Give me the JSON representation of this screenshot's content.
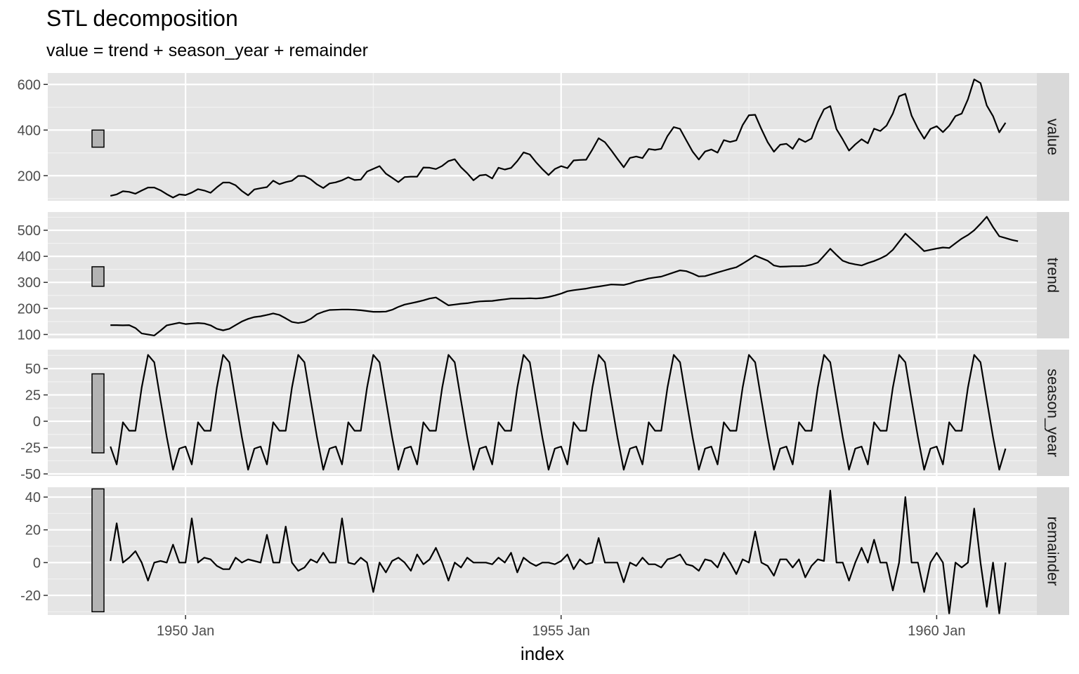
{
  "title": "STL decomposition",
  "subtitle": "value = trend + season_year + remainder",
  "colors": {
    "panel_bg": "#e5e5e5",
    "grid_major": "#ffffff",
    "strip_bg": "#d9d9d9",
    "line": "#000000",
    "scale_bar_fill": "#b3b3b3"
  },
  "chart_data": {
    "type": "line",
    "x_start": "1949 Jan",
    "x_end": "1960 Dec",
    "frequency": "monthly",
    "xlabel": "index",
    "x_ticks": [
      {
        "label": "1950 Jan",
        "year": 1950
      },
      {
        "label": "1955 Jan",
        "year": 1955
      },
      {
        "label": "1960 Jan",
        "year": 1960
      }
    ],
    "grid": true,
    "facets": [
      {
        "name": "value",
        "ylim": [
          90,
          650
        ],
        "y_ticks": [
          200,
          400,
          600
        ],
        "scale_bar": [
          325,
          400
        ],
        "values": [
          112,
          118,
          132,
          129,
          121,
          135,
          148,
          148,
          136,
          119,
          104,
          118,
          115,
          126,
          141,
          135,
          125,
          149,
          170,
          170,
          158,
          133,
          114,
          140,
          145,
          150,
          178,
          163,
          172,
          178,
          199,
          199,
          184,
          162,
          146,
          166,
          171,
          180,
          193,
          181,
          183,
          218,
          230,
          242,
          209,
          191,
          172,
          194,
          196,
          196,
          236,
          235,
          229,
          243,
          264,
          272,
          237,
          211,
          180,
          201,
          204,
          188,
          235,
          227,
          234,
          264,
          302,
          293,
          259,
          229,
          203,
          229,
          242,
          233,
          267,
          269,
          270,
          315,
          364,
          347,
          312,
          274,
          237,
          278,
          284,
          277,
          317,
          313,
          318,
          374,
          413,
          405,
          355,
          306,
          271,
          306,
          315,
          301,
          356,
          348,
          355,
          422,
          465,
          467,
          404,
          347,
          305,
          336,
          340,
          318,
          362,
          348,
          363,
          435,
          491,
          505,
          404,
          359,
          310,
          337,
          360,
          342,
          406,
          396,
          420,
          472,
          548,
          559,
          463,
          407,
          362,
          405,
          417,
          391,
          419,
          461,
          472,
          535,
          622,
          606,
          508,
          461,
          390,
          432
        ]
      },
      {
        "name": "trend",
        "ylim": [
          85,
          570
        ],
        "y_ticks": [
          100,
          200,
          300,
          400,
          500
        ],
        "scale_bar": [
          285,
          360
        ],
        "values": [
          136,
          136,
          135,
          136,
          125,
          104,
          100,
          96,
          115,
          135,
          140,
          145,
          140,
          142,
          144,
          142,
          135,
          122,
          116,
          122,
          136,
          150,
          160,
          167,
          170,
          175,
          181,
          175,
          162,
          148,
          144,
          148,
          160,
          178,
          187,
          194,
          195,
          196,
          196,
          195,
          193,
          190,
          187,
          187,
          188,
          195,
          206,
          215,
          220,
          225,
          231,
          238,
          242,
          227,
          212,
          215,
          218,
          220,
          224,
          227,
          228,
          229,
          232,
          235,
          238,
          238,
          238,
          239,
          238,
          240,
          244,
          250,
          257,
          266,
          270,
          273,
          276,
          281,
          284,
          288,
          292,
          291,
          290,
          296,
          304,
          309,
          315,
          319,
          322,
          330,
          338,
          346,
          343,
          334,
          323,
          324,
          331,
          338,
          345,
          352,
          358,
          372,
          387,
          403,
          393,
          383,
          365,
          360,
          361,
          362,
          362,
          363,
          368,
          376,
          402,
          429,
          405,
          383,
          374,
          369,
          365,
          374,
          382,
          392,
          404,
          425,
          456,
          487,
          465,
          443,
          420,
          425,
          430,
          434,
          432,
          450,
          468,
          482,
          500,
          525,
          552,
          512,
          477,
          470,
          463,
          458
        ]
      },
      {
        "name": "season_year",
        "ylim": [
          -52,
          68
        ],
        "y_ticks": [
          -50,
          -25,
          0,
          25,
          50
        ],
        "scale_bar": [
          -30,
          45
        ],
        "values": [
          -24,
          -41,
          -1,
          -9,
          -9,
          32,
          63,
          56,
          20,
          -15,
          -46,
          -26
        ]
      },
      {
        "name": "remainder",
        "ylim": [
          -32,
          46
        ],
        "y_ticks": [
          -20,
          0,
          20,
          40
        ],
        "scale_bar": [
          -30,
          45
        ],
        "values": [
          1,
          24,
          0,
          3,
          7,
          0,
          -11,
          0,
          1,
          0,
          11,
          0,
          0,
          27,
          0,
          3,
          2,
          -2,
          -4,
          -4,
          3,
          0,
          2,
          1,
          0,
          17,
          0,
          0,
          22,
          0,
          -5,
          -3,
          2,
          0,
          6,
          0,
          0,
          27,
          0,
          -1,
          3,
          0,
          -18,
          0,
          -6,
          1,
          3,
          0,
          -5,
          5,
          -1,
          2,
          9,
          0,
          -11,
          0,
          -3,
          3,
          0,
          0,
          0,
          -1,
          3,
          0,
          6,
          -6,
          3,
          0,
          -2,
          0,
          0,
          -1,
          1,
          5,
          -4,
          2,
          -1,
          0,
          15,
          0,
          0,
          0,
          -12,
          0,
          -2,
          3,
          -1,
          -1,
          -3,
          2,
          3,
          5,
          -1,
          -2,
          -5,
          2,
          1,
          -3,
          6,
          0,
          -7,
          2,
          0,
          19,
          0,
          -2,
          -8,
          2,
          2,
          -3,
          2,
          -9,
          -2,
          2,
          1,
          44,
          0,
          0,
          -11,
          0,
          9,
          0,
          14,
          0,
          0,
          -17,
          0,
          40,
          0,
          0,
          -18,
          0,
          6,
          0,
          -31,
          0,
          -3,
          0,
          33,
          0,
          -27,
          0,
          -31,
          0
        ]
      }
    ]
  }
}
